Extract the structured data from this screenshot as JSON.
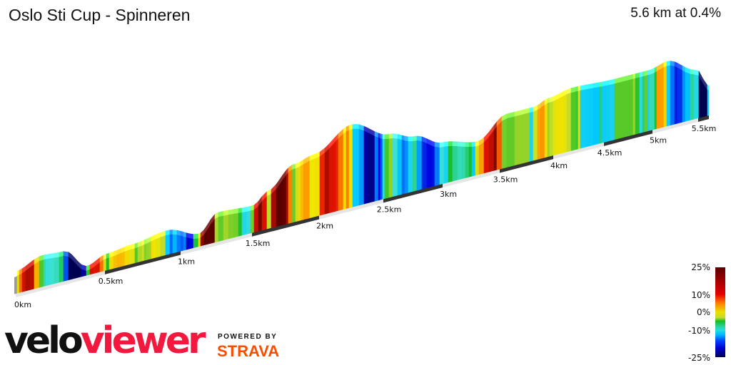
{
  "header": {
    "title": "Oslo Sti Cup - Spinneren",
    "summary": "5.6 km at 0.4%"
  },
  "chart_data": {
    "type": "area",
    "title": "Oslo Sti Cup - Spinneren",
    "distance_km": 5.6,
    "average_grade_pct": 0.4,
    "x_ticks": [
      "0km",
      "0.5km",
      "1km",
      "1.5km",
      "2km",
      "2.5km",
      "3km",
      "3.5km",
      "4km",
      "4.5km",
      "5km",
      "5.5km"
    ],
    "profile": {
      "km": [
        0,
        0.15,
        0.27,
        0.4,
        0.51,
        0.68,
        0.91,
        1.13,
        1.26,
        1.51,
        1.62,
        1.81,
        1.97,
        2.25,
        2.55,
        2.76,
        3.0,
        3.31,
        3.56,
        3.82,
        3.96,
        4.18,
        4.61,
        4.97,
        5.16,
        5.48,
        5.6
      ],
      "elevation": [
        29,
        42,
        40,
        11,
        21,
        25,
        32,
        16,
        39,
        36,
        51,
        79,
        86,
        114,
        87,
        75,
        56,
        45,
        73,
        73,
        80,
        86,
        83,
        83,
        89,
        67,
        40
      ]
    },
    "colorscale": {
      "label_ticks": [
        "25%",
        "10%",
        "0%",
        "-10%",
        "-25%"
      ],
      "colors": [
        "#5a0000",
        "#e60000",
        "#ff8000",
        "#e8e000",
        "#10c020",
        "#20e0e0",
        "#00b8ff",
        "#0000d0",
        "#000050"
      ]
    }
  },
  "branding": {
    "logo_left": "velo",
    "logo_right": "viewer",
    "powered_by": "POWERED BY",
    "strava": "STRAVA"
  }
}
